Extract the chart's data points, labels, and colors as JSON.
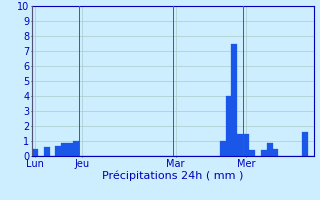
{
  "xlabel": "Précipitations 24h ( mm )",
  "ylim": [
    0,
    10
  ],
  "yticks": [
    0,
    1,
    2,
    3,
    4,
    5,
    6,
    7,
    8,
    9,
    10
  ],
  "background_color": "#cceeff",
  "bar_color": "#1a56e8",
  "bar_edge_color": "#1a56e8",
  "values": [
    0.5,
    0.0,
    0.6,
    0.0,
    0.7,
    0.9,
    0.9,
    1.0,
    0.0,
    0.0,
    0.0,
    0.0,
    0.0,
    0.0,
    0.0,
    0.0,
    0.0,
    0.0,
    0.0,
    0.0,
    0.0,
    0.0,
    0.0,
    0.0,
    0.0,
    0.0,
    0.0,
    0.0,
    0.0,
    0.0,
    0.0,
    0.0,
    1.0,
    4.0,
    7.5,
    1.5,
    1.5,
    0.4,
    0.0,
    0.4,
    0.9,
    0.5,
    0.0,
    0.0,
    0.0,
    0.0,
    1.6,
    0.0
  ],
  "day_labels": [
    "Lun",
    "Jeu",
    "Mar",
    "Mer"
  ],
  "day_positions": [
    0,
    8,
    24,
    36
  ],
  "vline_color": "#555577",
  "grid_color": "#aacccc",
  "axis_color": "#0000bb",
  "tick_color": "#0000bb",
  "label_fontsize": 8,
  "tick_fontsize": 7
}
